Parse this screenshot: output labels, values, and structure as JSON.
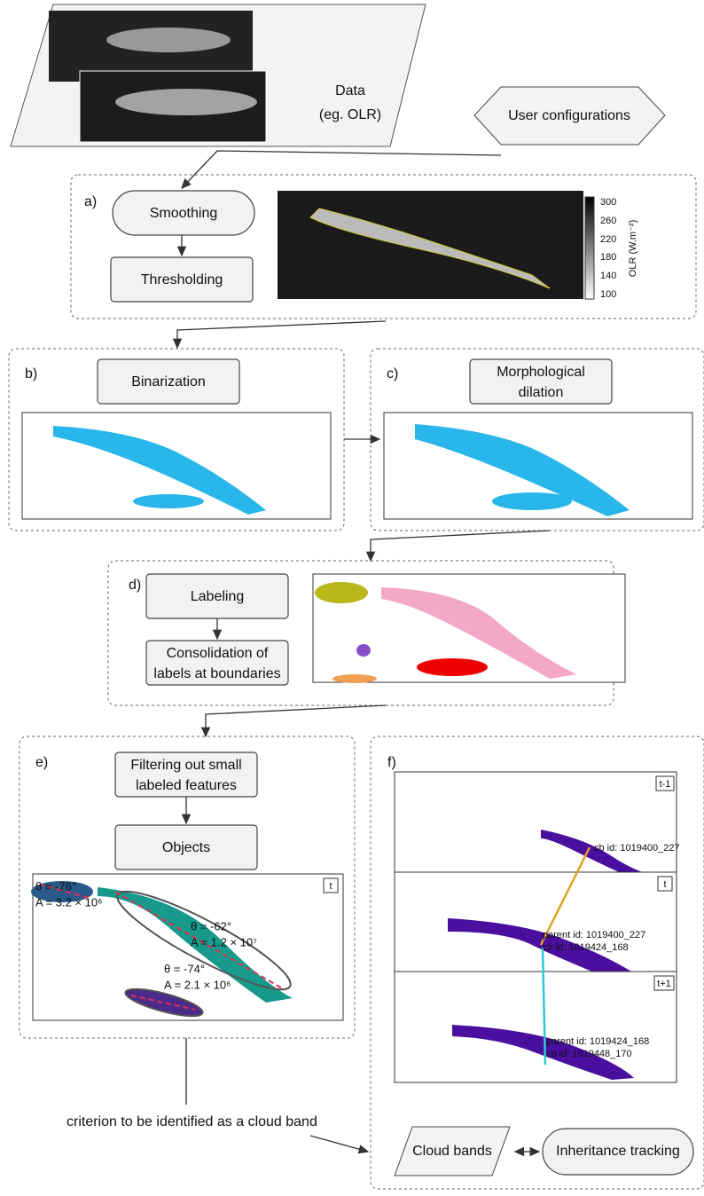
{
  "data_node": {
    "lines": [
      "Data",
      "(eg. OLR)"
    ]
  },
  "user_config": "User configurations",
  "panel_a": {
    "label": "a)",
    "smoothing": "Smoothing",
    "thresholding": "Thresholding",
    "colorbar_ticks": [
      "300",
      "260",
      "220",
      "180",
      "140",
      "100"
    ],
    "colorbar_label": "OLR (W.m⁻²)"
  },
  "panel_b": {
    "label": "b)",
    "step": "Binarization"
  },
  "panel_c": {
    "label": "c)",
    "step": [
      "Morphological",
      "dilation"
    ]
  },
  "panel_d": {
    "label": "d)",
    "labeling": "Labeling",
    "consolidation": [
      "Consolidation of",
      "labels at boundaries"
    ]
  },
  "panel_e": {
    "label": "e)",
    "filtering": [
      "Filtering out small",
      "labeled features"
    ],
    "objects": "Objects",
    "map_time": "t",
    "annotations": [
      {
        "theta": "θ = -76°",
        "area": "A = 3.2 × 10⁶"
      },
      {
        "theta": "θ = -62°",
        "area": "A = 1.2 × 10⁷"
      },
      {
        "theta": "θ = -74°",
        "area": "A = 2.1 × 10⁶"
      }
    ]
  },
  "panel_f": {
    "label": "f)",
    "times": [
      "t-1",
      "t",
      "t+1"
    ],
    "cb_t_minus_1": "cb id: 1019400_227",
    "parent_t": "parent id: 1019400_227",
    "cb_t": "cb id: 1019424_168",
    "parent_t_plus_1": "parent id: 1019424_168",
    "cb_t_plus_1": "cb id: 1019448_170"
  },
  "criterion": "criterion to be identified as a cloud band",
  "cloud_bands": "Cloud bands",
  "inheritance": "Inheritance tracking"
}
